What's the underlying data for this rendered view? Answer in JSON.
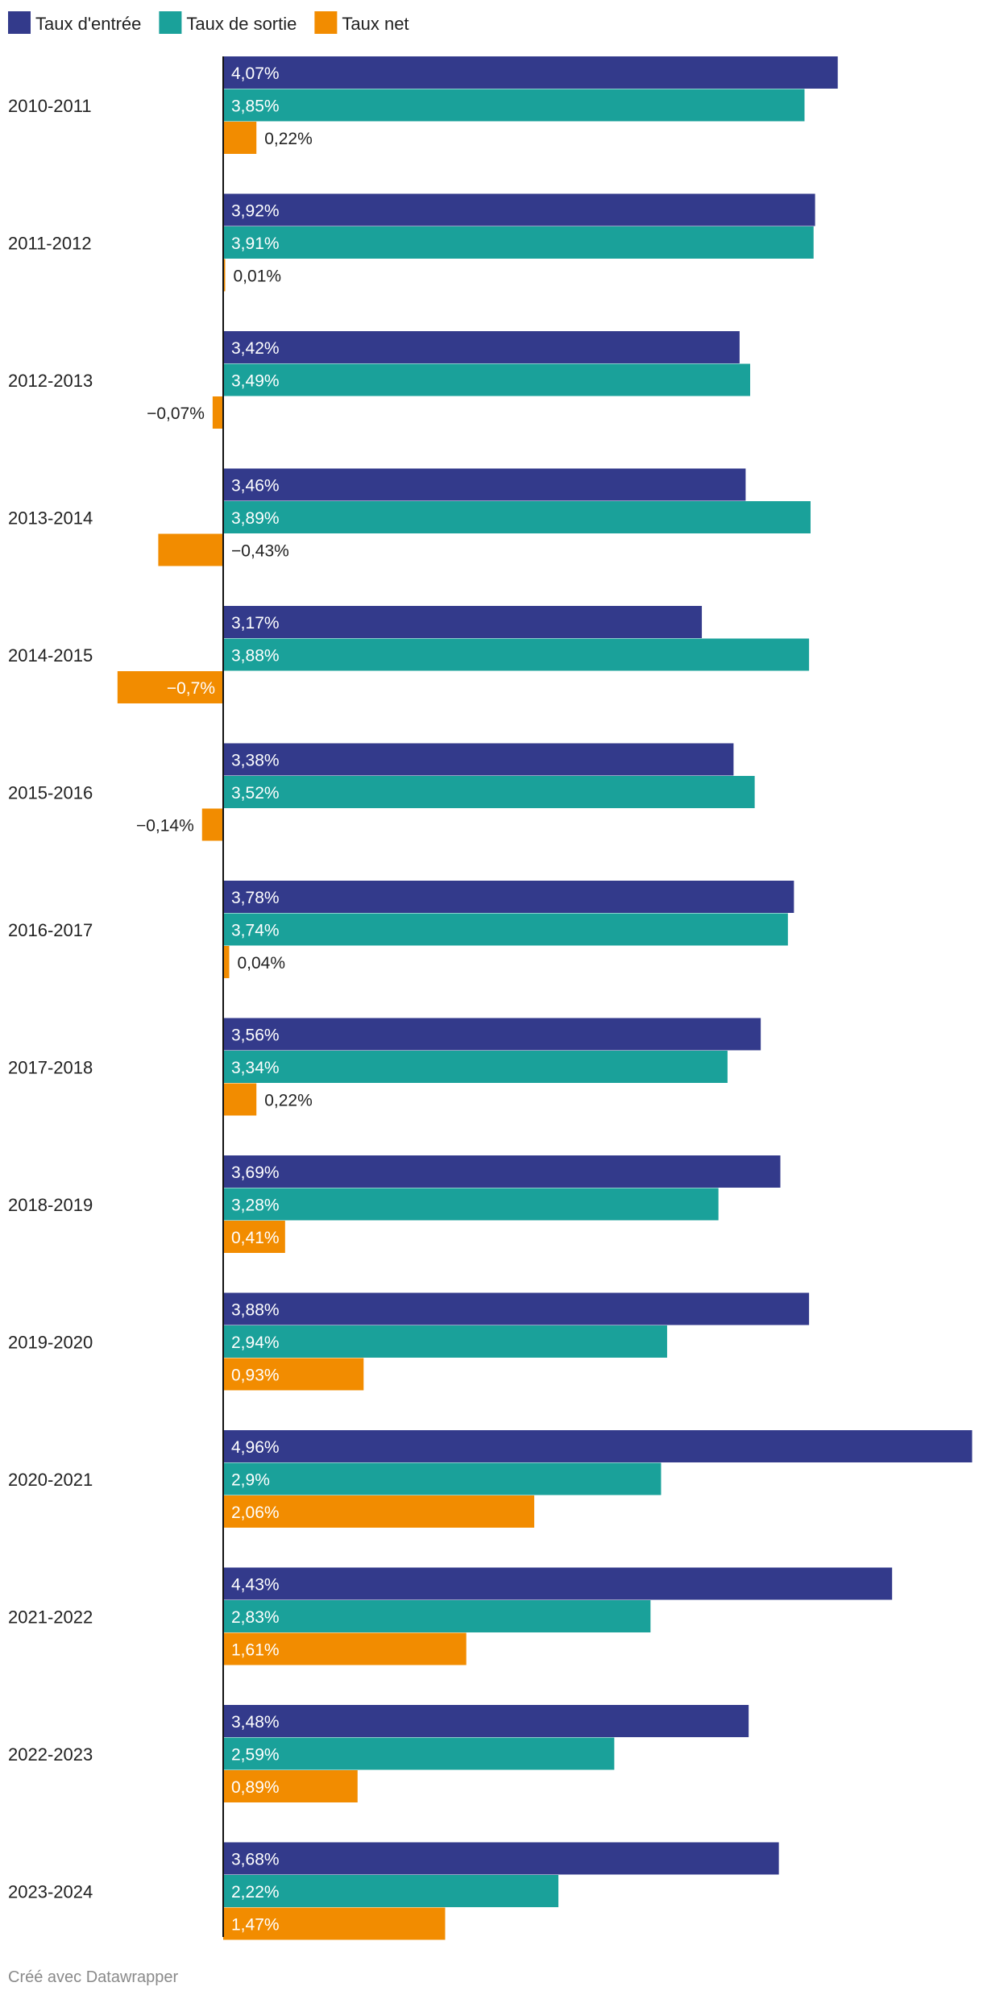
{
  "chart_data": {
    "type": "bar",
    "orientation": "horizontal",
    "title": "",
    "xlabel": "",
    "ylabel": "",
    "categories": [
      "2010-2011",
      "2011-2012",
      "2012-2013",
      "2013-2014",
      "2014-2015",
      "2015-2016",
      "2016-2017",
      "2017-2018",
      "2018-2019",
      "2019-2020",
      "2020-2021",
      "2021-2022",
      "2022-2023",
      "2023-2024"
    ],
    "series": [
      {
        "name": "Taux d'entrée",
        "color": "#333a8b",
        "values": [
          4.07,
          3.92,
          3.42,
          3.46,
          3.17,
          3.38,
          3.78,
          3.56,
          3.69,
          3.88,
          4.96,
          4.43,
          3.48,
          3.68
        ],
        "labels": [
          "4,07%",
          "3,92%",
          "3,42%",
          "3,46%",
          "3,17%",
          "3,38%",
          "3,78%",
          "3,56%",
          "3,69%",
          "3,88%",
          "4,96%",
          "4,43%",
          "3,48%",
          "3,68%"
        ]
      },
      {
        "name": "Taux de sortie",
        "color": "#1aa19a",
        "values": [
          3.85,
          3.91,
          3.49,
          3.89,
          3.88,
          3.52,
          3.74,
          3.34,
          3.28,
          2.94,
          2.9,
          2.83,
          2.59,
          2.22
        ],
        "labels": [
          "3,85%",
          "3,91%",
          "3,49%",
          "3,89%",
          "3,88%",
          "3,52%",
          "3,74%",
          "3,34%",
          "3,28%",
          "2,94%",
          "2,9%",
          "2,83%",
          "2,59%",
          "2,22%"
        ]
      },
      {
        "name": "Taux net",
        "color": "#f28c00",
        "values": [
          0.22,
          0.01,
          -0.07,
          -0.43,
          -0.7,
          -0.14,
          0.04,
          0.22,
          0.41,
          0.93,
          2.06,
          1.61,
          0.89,
          1.47
        ],
        "labels": [
          "0,22%",
          "0,01%",
          "−0,07%",
          "−0,43%",
          "−0,7%",
          "−0,14%",
          "0,04%",
          "0,22%",
          "0,41%",
          "0,93%",
          "2,06%",
          "1,61%",
          "0,89%",
          "1,47%"
        ]
      }
    ],
    "xlim": [
      -0.7,
      4.96
    ],
    "grid": false,
    "legend": "top-left"
  },
  "footer": {
    "credit": "Créé avec Datawrapper"
  }
}
